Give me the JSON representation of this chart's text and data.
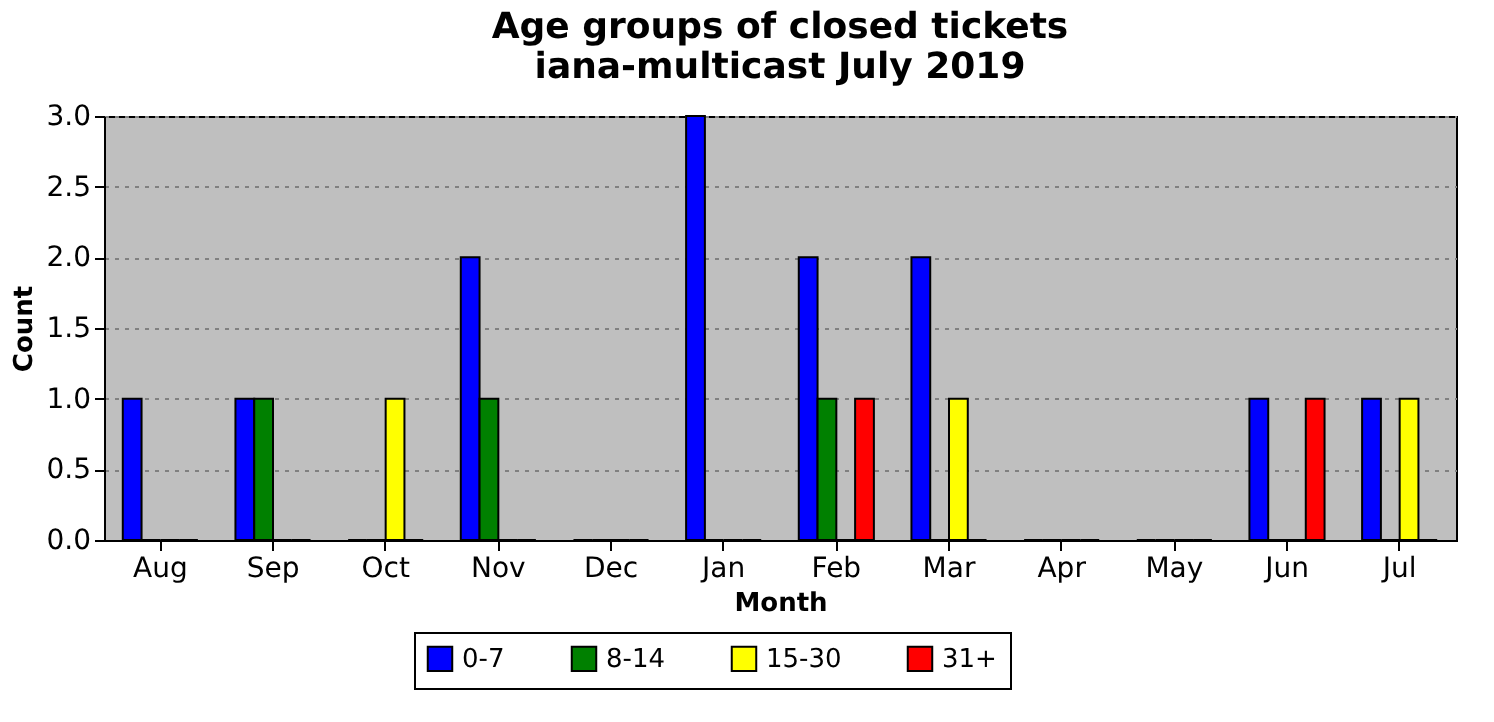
{
  "chart_data": {
    "type": "bar",
    "title": "Age groups of closed tickets",
    "subtitle": "iana-multicast July 2019",
    "xlabel": "Month",
    "ylabel": "Count",
    "categories": [
      "Aug",
      "Sep",
      "Oct",
      "Nov",
      "Dec",
      "Jan",
      "Feb",
      "Mar",
      "Apr",
      "May",
      "Jun",
      "Jul"
    ],
    "series": [
      {
        "name": "0-7",
        "color": "#0000ff",
        "values": [
          1,
          1,
          0,
          2,
          0,
          3,
          2,
          2,
          0,
          0,
          1,
          1
        ]
      },
      {
        "name": "8-14",
        "color": "#008000",
        "values": [
          0,
          1,
          0,
          1,
          0,
          0,
          1,
          0,
          0,
          0,
          0,
          0
        ]
      },
      {
        "name": "15-30",
        "color": "#ffff00",
        "values": [
          0,
          0,
          1,
          0,
          0,
          0,
          0,
          1,
          0,
          0,
          0,
          1
        ]
      },
      {
        "name": "31+",
        "color": "#ff0000",
        "values": [
          0,
          0,
          0,
          0,
          0,
          0,
          1,
          0,
          0,
          0,
          1,
          0
        ]
      }
    ],
    "ylim": [
      0,
      3
    ],
    "yticks": [
      {
        "value": 0,
        "label": "0.0"
      },
      0.5,
      {
        "value": 1,
        "label": "1.0"
      },
      1.5,
      {
        "value": 2,
        "label": "2.0"
      },
      2.5,
      {
        "value": 3,
        "label": "3.0"
      }
    ],
    "grid": "y",
    "legend": "bottom"
  }
}
